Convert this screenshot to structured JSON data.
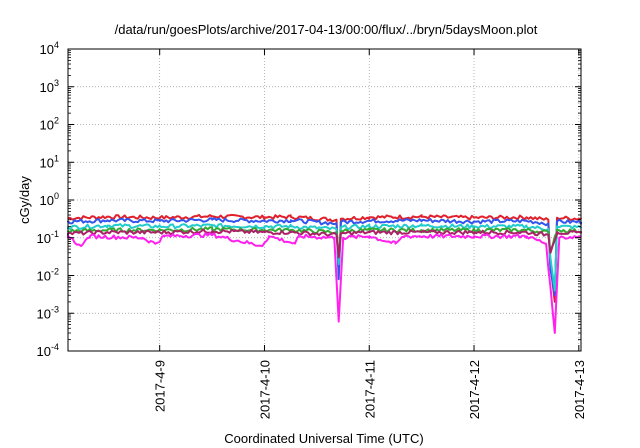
{
  "chart_data": {
    "type": "line",
    "title": "/data/run/goesPlots/archive/2017-04-13/00:00/flux/../bryn/5daysMoon.plot",
    "xlabel": "Coordinated Universal Time (UTC)",
    "ylabel": "cGy/day",
    "yscale": "log",
    "ylim": [
      0.0001,
      10000
    ],
    "xlim": [
      "2017-04-08T03:00",
      "2017-04-13T00:30"
    ],
    "grid": true,
    "legend": "none",
    "y_ticks": [
      {
        "base": "10",
        "exp": "-4"
      },
      {
        "base": "10",
        "exp": "-3"
      },
      {
        "base": "10",
        "exp": "-2"
      },
      {
        "base": "10",
        "exp": "-1"
      },
      {
        "base": "10",
        "exp": "0"
      },
      {
        "base": "10",
        "exp": "1"
      },
      {
        "base": "10",
        "exp": "2"
      },
      {
        "base": "10",
        "exp": "3"
      },
      {
        "base": "10",
        "exp": "4"
      }
    ],
    "x_ticks": [
      {
        "label": "2017-4-9",
        "date": "2017-04-09T00:00"
      },
      {
        "label": "2017-4-10",
        "date": "2017-04-10T00:00"
      },
      {
        "label": "2017-4-11",
        "date": "2017-04-11T00:00"
      },
      {
        "label": "2017-4-12",
        "date": "2017-04-12T00:00"
      },
      {
        "label": "2017-4-13",
        "date": "2017-04-13T00:00"
      }
    ],
    "series": [
      {
        "color": "#e0202a",
        "base_level": 0.35,
        "points": [
          [
            "2017-04-08T03:00",
            0.33
          ],
          [
            "2017-04-08T12:00",
            0.36
          ],
          [
            "2017-04-09T00:00",
            0.34
          ],
          [
            "2017-04-09T12:00",
            0.37
          ],
          [
            "2017-04-10T00:00",
            0.35
          ],
          [
            "2017-04-10T06:00",
            0.36
          ],
          [
            "2017-04-10T16:30",
            0.3
          ],
          [
            "2017-04-10T17:00",
            0.012
          ],
          [
            "2017-04-10T17:30",
            0.32
          ],
          [
            "2017-04-11T00:00",
            0.35
          ],
          [
            "2017-04-11T12:00",
            0.36
          ],
          [
            "2017-04-12T00:00",
            0.34
          ],
          [
            "2017-04-12T12:00",
            0.35
          ],
          [
            "2017-04-12T17:00",
            0.3
          ],
          [
            "2017-04-12T17:30",
            0.02
          ],
          [
            "2017-04-12T18:30",
            0.002
          ],
          [
            "2017-04-12T19:00",
            0.34
          ],
          [
            "2017-04-13T00:30",
            0.32
          ]
        ]
      },
      {
        "color": "#3355ee",
        "base_level": 0.28,
        "points": [
          [
            "2017-04-08T03:00",
            0.27
          ],
          [
            "2017-04-08T12:00",
            0.29
          ],
          [
            "2017-04-09T00:00",
            0.28
          ],
          [
            "2017-04-09T12:00",
            0.3
          ],
          [
            "2017-04-10T00:00",
            0.28
          ],
          [
            "2017-04-10T06:00",
            0.29
          ],
          [
            "2017-04-10T16:30",
            0.24
          ],
          [
            "2017-04-10T17:00",
            0.008
          ],
          [
            "2017-04-10T17:30",
            0.26
          ],
          [
            "2017-04-11T00:00",
            0.28
          ],
          [
            "2017-04-11T12:00",
            0.29
          ],
          [
            "2017-04-12T00:00",
            0.27
          ],
          [
            "2017-04-12T12:00",
            0.28
          ],
          [
            "2017-04-12T17:00",
            0.24
          ],
          [
            "2017-04-12T17:30",
            0.015
          ],
          [
            "2017-04-12T18:30",
            0.003
          ],
          [
            "2017-04-12T19:00",
            0.27
          ],
          [
            "2017-04-13T00:30",
            0.26
          ]
        ]
      },
      {
        "color": "#22cccc",
        "base_level": 0.2,
        "points": [
          [
            "2017-04-08T03:00",
            0.19
          ],
          [
            "2017-04-08T12:00",
            0.21
          ],
          [
            "2017-04-09T00:00",
            0.2
          ],
          [
            "2017-04-09T12:00",
            0.21
          ],
          [
            "2017-04-10T00:00",
            0.2
          ],
          [
            "2017-04-10T06:00",
            0.2
          ],
          [
            "2017-04-10T16:30",
            0.17
          ],
          [
            "2017-04-10T17:00",
            0.02
          ],
          [
            "2017-04-10T17:30",
            0.19
          ],
          [
            "2017-04-11T00:00",
            0.2
          ],
          [
            "2017-04-11T12:00",
            0.21
          ],
          [
            "2017-04-12T00:00",
            0.2
          ],
          [
            "2017-04-12T12:00",
            0.2
          ],
          [
            "2017-04-12T17:00",
            0.17
          ],
          [
            "2017-04-12T17:30",
            0.03
          ],
          [
            "2017-04-12T18:30",
            0.004
          ],
          [
            "2017-04-12T19:00",
            0.2
          ],
          [
            "2017-04-13T00:30",
            0.19
          ]
        ]
      },
      {
        "color": "#33aa33",
        "base_level": 0.16,
        "points": [
          [
            "2017-04-08T03:00",
            0.15
          ],
          [
            "2017-04-08T12:00",
            0.16
          ],
          [
            "2017-04-09T00:00",
            0.16
          ],
          [
            "2017-04-09T12:00",
            0.17
          ],
          [
            "2017-04-10T00:00",
            0.16
          ],
          [
            "2017-04-10T06:00",
            0.16
          ],
          [
            "2017-04-10T16:30",
            0.14
          ],
          [
            "2017-04-10T17:00",
            0.03
          ],
          [
            "2017-04-10T17:30",
            0.15
          ],
          [
            "2017-04-11T00:00",
            0.16
          ],
          [
            "2017-04-11T12:00",
            0.16
          ],
          [
            "2017-04-12T00:00",
            0.16
          ],
          [
            "2017-04-12T12:00",
            0.16
          ],
          [
            "2017-04-12T17:00",
            0.14
          ],
          [
            "2017-04-12T17:30",
            0.04
          ],
          [
            "2017-04-12T19:00",
            0.16
          ],
          [
            "2017-04-13T00:30",
            0.15
          ]
        ]
      },
      {
        "color": "#aa2266",
        "base_level": 0.14,
        "points": [
          [
            "2017-04-08T03:00",
            0.13
          ],
          [
            "2017-04-08T12:00",
            0.14
          ],
          [
            "2017-04-09T00:00",
            0.14
          ],
          [
            "2017-04-09T12:00",
            0.15
          ],
          [
            "2017-04-10T00:00",
            0.14
          ],
          [
            "2017-04-10T06:00",
            0.14
          ],
          [
            "2017-04-10T16:30",
            0.12
          ],
          [
            "2017-04-10T17:00",
            0.03
          ],
          [
            "2017-04-10T17:30",
            0.13
          ],
          [
            "2017-04-11T00:00",
            0.14
          ],
          [
            "2017-04-11T12:00",
            0.14
          ],
          [
            "2017-04-12T00:00",
            0.14
          ],
          [
            "2017-04-12T12:00",
            0.14
          ],
          [
            "2017-04-12T17:00",
            0.12
          ],
          [
            "2017-04-12T17:30",
            0.04
          ],
          [
            "2017-04-12T19:00",
            0.14
          ],
          [
            "2017-04-13T00:30",
            0.13
          ]
        ]
      },
      {
        "color": "#ff22ee",
        "base_level": 0.11,
        "points": [
          [
            "2017-04-08T03:00",
            0.11
          ],
          [
            "2017-04-08T06:00",
            0.06
          ],
          [
            "2017-04-08T08:00",
            0.11
          ],
          [
            "2017-04-08T20:00",
            0.1
          ],
          [
            "2017-04-08T23:00",
            0.07
          ],
          [
            "2017-04-09T01:00",
            0.11
          ],
          [
            "2017-04-09T12:00",
            0.12
          ],
          [
            "2017-04-09T23:30",
            0.06
          ],
          [
            "2017-04-10T01:00",
            0.11
          ],
          [
            "2017-04-10T07:00",
            0.07
          ],
          [
            "2017-04-10T08:00",
            0.11
          ],
          [
            "2017-04-10T16:00",
            0.1
          ],
          [
            "2017-04-10T17:00",
            0.0006
          ],
          [
            "2017-04-10T18:00",
            0.1
          ],
          [
            "2017-04-11T00:00",
            0.11
          ],
          [
            "2017-04-11T06:00",
            0.07
          ],
          [
            "2017-04-11T08:00",
            0.11
          ],
          [
            "2017-04-11T20:00",
            0.11
          ],
          [
            "2017-04-12T00:00",
            0.11
          ],
          [
            "2017-04-12T12:00",
            0.11
          ],
          [
            "2017-04-12T16:30",
            0.07
          ],
          [
            "2017-04-12T18:30",
            0.0003
          ],
          [
            "2017-04-12T19:30",
            0.1
          ],
          [
            "2017-04-13T00:30",
            0.11
          ]
        ]
      }
    ]
  }
}
